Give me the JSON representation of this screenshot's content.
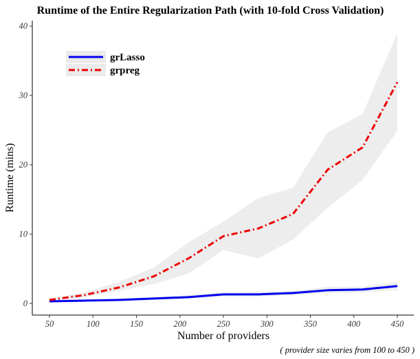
{
  "chart_data": {
    "type": "line",
    "title": "Runtime of the Entire Regularization Path (with 10-fold Cross Validation)",
    "xlabel": "Number of providers",
    "ylabel": "Runtime (mins)",
    "caption": "( provider size varies from 100 to 450 )",
    "xlim": [
      50,
      450
    ],
    "ylim": [
      0,
      40
    ],
    "xticks": [
      50,
      100,
      150,
      200,
      250,
      300,
      350,
      400,
      450
    ],
    "yticks": [
      0,
      10,
      20,
      30,
      40
    ],
    "grid": false,
    "legend_position": "top-left",
    "x": [
      50,
      90,
      130,
      170,
      210,
      250,
      290,
      330,
      370,
      410,
      450
    ],
    "series": [
      {
        "name": "grLasso",
        "color": "#0000ee",
        "line_style": "solid",
        "values": [
          0.3,
          0.4,
          0.5,
          0.7,
          0.9,
          1.3,
          1.3,
          1.5,
          1.9,
          2.0,
          2.5
        ],
        "lower": [
          0.2,
          0.3,
          0.4,
          0.5,
          0.7,
          1.0,
          1.0,
          1.2,
          1.5,
          1.6,
          1.9
        ],
        "upper": [
          0.5,
          0.6,
          0.7,
          0.9,
          1.2,
          1.6,
          1.7,
          1.8,
          2.4,
          2.4,
          3.1
        ]
      },
      {
        "name": "grpreg",
        "color": "#ee0000",
        "line_style": "dotdash",
        "values": [
          0.5,
          1.2,
          2.3,
          3.9,
          6.5,
          9.7,
          10.8,
          12.9,
          19.3,
          22.5,
          31.9
        ],
        "lower": [
          0.3,
          0.9,
          1.8,
          2.8,
          4.3,
          7.7,
          6.5,
          9.2,
          13.8,
          17.8,
          24.9
        ],
        "upper": [
          0.7,
          1.6,
          3.1,
          5.2,
          8.8,
          11.8,
          15.2,
          16.7,
          24.7,
          27.3,
          39.0
        ]
      }
    ]
  }
}
